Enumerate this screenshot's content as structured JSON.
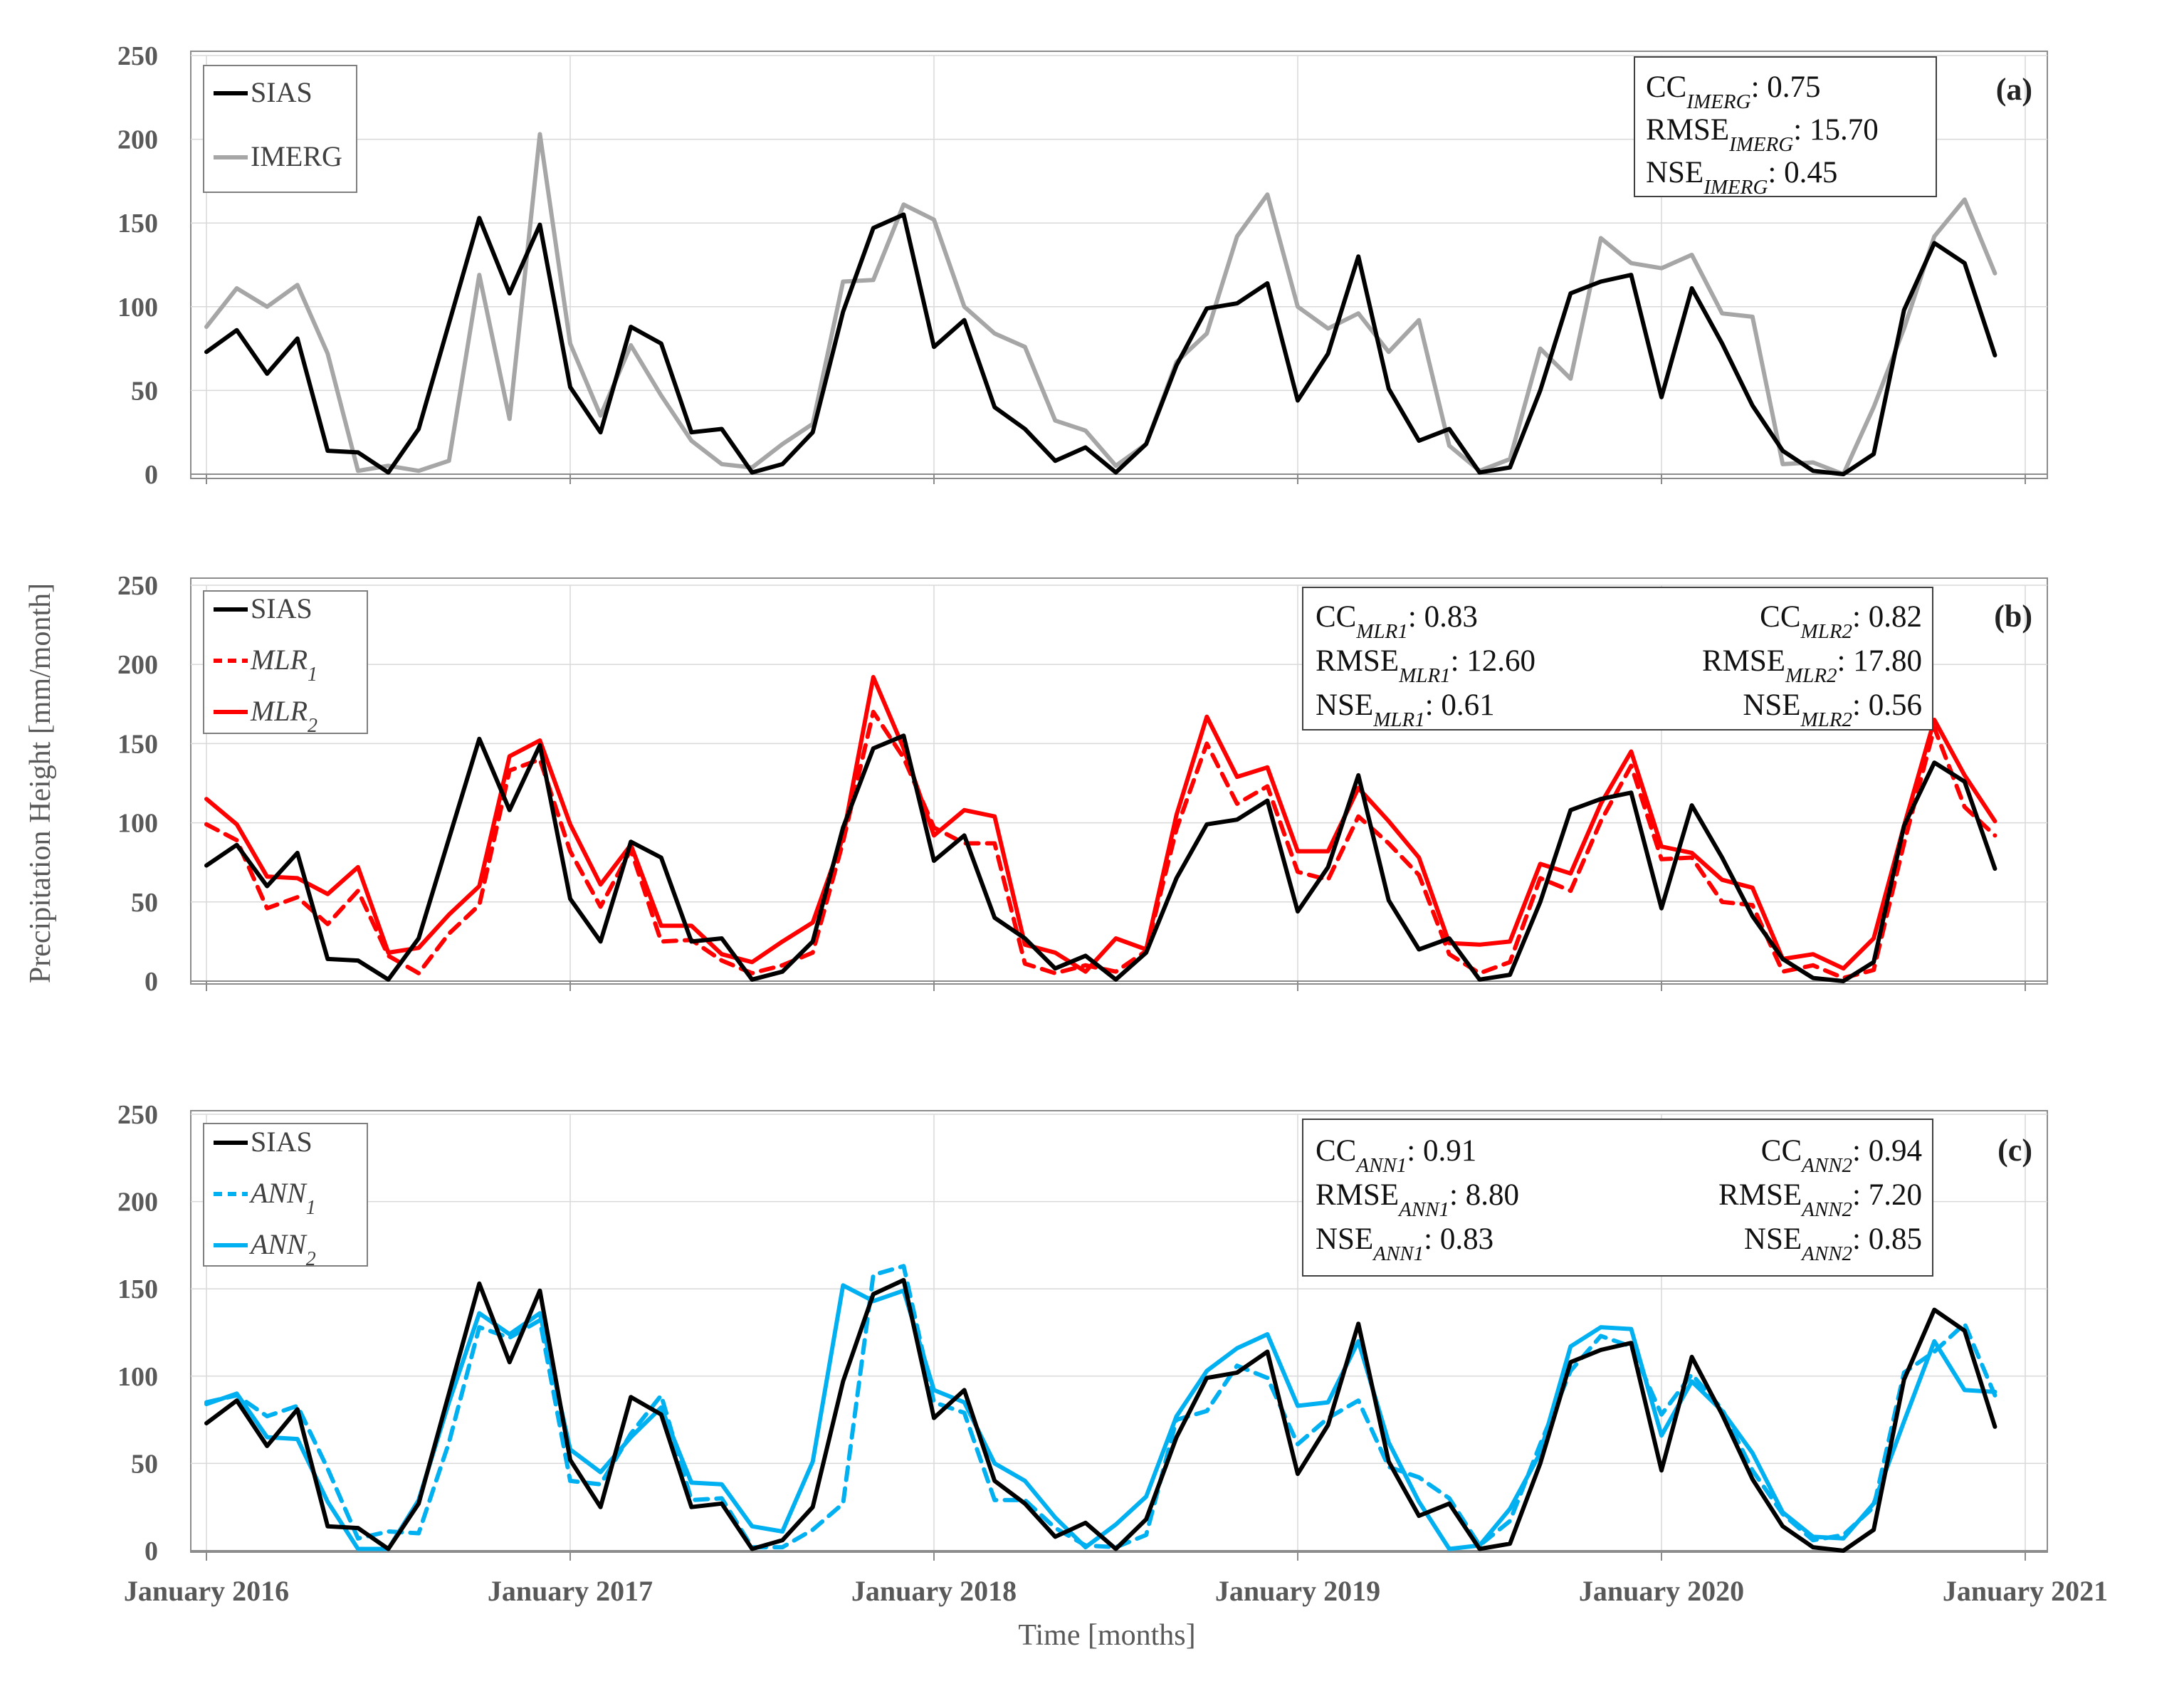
{
  "axis_titles": {
    "y": "Precipitation Height [mm/month]",
    "x": "Time [months]"
  },
  "chart_data": [
    {
      "type": "line",
      "panel": "(a)",
      "ylim": [
        0,
        250
      ],
      "yticks": [
        "0",
        "50",
        "100",
        "150",
        "200",
        "250"
      ],
      "x_labels": [
        "January 2016",
        "January 2017",
        "January 2018",
        "January 2019",
        "January 2020",
        "January 2021"
      ],
      "x_label_index": [
        0,
        12,
        24,
        36,
        48,
        60
      ],
      "series": [
        {
          "name": "SIAS",
          "color": "#000000",
          "dash": false,
          "values": [
            73,
            86,
            60,
            81,
            14,
            13,
            1,
            27,
            90,
            153,
            108,
            149,
            52,
            25,
            88,
            78,
            25,
            27,
            1,
            6,
            25,
            97,
            147,
            155,
            76,
            92,
            40,
            27,
            8,
            16,
            1,
            18,
            65,
            99,
            102,
            114,
            44,
            72,
            130,
            51,
            20,
            27,
            1,
            4,
            50,
            108,
            115,
            119,
            46,
            111,
            78,
            41,
            14,
            2,
            0,
            12,
            98,
            138,
            126,
            71
          ]
        },
        {
          "name": "IMERG",
          "color": "#a6a6a6",
          "dash": false,
          "values": [
            88,
            111,
            100,
            113,
            72,
            2,
            5,
            2,
            8,
            119,
            33,
            203,
            78,
            35,
            77,
            47,
            20,
            6,
            4,
            18,
            30,
            115,
            116,
            161,
            152,
            100,
            84,
            76,
            32,
            26,
            5,
            18,
            67,
            84,
            142,
            167,
            100,
            87,
            96,
            73,
            92,
            17,
            2,
            9,
            75,
            57,
            141,
            126,
            123,
            131,
            96,
            94,
            6,
            7,
            0,
            40,
            87,
            142,
            164,
            120
          ]
        }
      ],
      "legend": [
        {
          "key": "SIAS",
          "label": "SIAS",
          "subscript": "",
          "italic": false
        },
        {
          "key": "IMERG",
          "label": "IMERG",
          "subscript": "",
          "italic": false
        }
      ],
      "stats": {
        "left": [
          {
            "prefix": "CC",
            "subscript": "IMERG",
            "value": ": 0.75"
          },
          {
            "prefix": "RMSE",
            "subscript": "IMERG",
            "value": ": 15.70"
          },
          {
            "prefix": "NSE",
            "subscript": "IMERG",
            "value": ": 0.45"
          }
        ],
        "right": []
      }
    },
    {
      "type": "line",
      "panel": "(b)",
      "ylim": [
        0,
        250
      ],
      "yticks": [
        "0",
        "50",
        "100",
        "150",
        "200",
        "250"
      ],
      "x_labels": [],
      "x_label_index": [
        0,
        12,
        24,
        36,
        48,
        60
      ],
      "series": [
        {
          "name": "SIAS",
          "color": "#000000",
          "dash": false,
          "values": [
            73,
            86,
            60,
            81,
            14,
            13,
            1,
            27,
            90,
            153,
            108,
            149,
            52,
            25,
            88,
            78,
            25,
            27,
            1,
            6,
            25,
            97,
            147,
            155,
            76,
            92,
            40,
            27,
            8,
            16,
            1,
            18,
            65,
            99,
            102,
            114,
            44,
            72,
            130,
            51,
            20,
            27,
            1,
            4,
            50,
            108,
            115,
            119,
            46,
            111,
            78,
            41,
            14,
            2,
            0,
            12,
            98,
            138,
            126,
            71
          ]
        },
        {
          "name": "MLR1",
          "color": "#ff0000",
          "dash": true,
          "values": [
            99,
            89,
            46,
            53,
            36,
            57,
            16,
            5,
            30,
            48,
            133,
            140,
            82,
            47,
            83,
            25,
            26,
            13,
            5,
            10,
            18,
            88,
            170,
            141,
            97,
            87,
            87,
            11,
            5,
            10,
            6,
            19,
            96,
            150,
            112,
            123,
            69,
            64,
            104,
            87,
            67,
            17,
            5,
            12,
            65,
            57,
            101,
            136,
            77,
            78,
            50,
            48,
            6,
            10,
            2,
            7,
            87,
            160,
            110,
            92
          ]
        },
        {
          "name": "MLR2",
          "color": "#ff0000",
          "dash": false,
          "values": [
            115,
            99,
            66,
            65,
            55,
            72,
            18,
            21,
            42,
            60,
            142,
            152,
            99,
            61,
            86,
            35,
            35,
            17,
            12,
            25,
            37,
            91,
            192,
            147,
            92,
            108,
            104,
            23,
            18,
            6,
            27,
            20,
            105,
            167,
            129,
            135,
            82,
            82,
            122,
            101,
            78,
            24,
            23,
            25,
            74,
            68,
            112,
            145,
            85,
            81,
            64,
            59,
            14,
            17,
            8,
            27,
            98,
            165,
            130,
            101
          ]
        }
      ],
      "legend": [
        {
          "key": "SIAS",
          "label": "SIAS",
          "subscript": "",
          "italic": false
        },
        {
          "key": "MLR1",
          "label": "MLR",
          "subscript": "1",
          "italic": true
        },
        {
          "key": "MLR2",
          "label": "MLR",
          "subscript": "2",
          "italic": true
        }
      ],
      "stats": {
        "left": [
          {
            "prefix": "CC",
            "subscript": "MLR1",
            "value": ": 0.83"
          },
          {
            "prefix": "RMSE",
            "subscript": "MLR1",
            "value": ": 12.60"
          },
          {
            "prefix": "NSE",
            "subscript": "MLR1",
            "value": ": 0.61"
          }
        ],
        "right": [
          {
            "prefix": "CC",
            "subscript": "MLR2",
            "value": ": 0.82"
          },
          {
            "prefix": "RMSE",
            "subscript": "MLR2",
            "value": ": 17.80"
          },
          {
            "prefix": "NSE",
            "subscript": "MLR2",
            "value": ": 0.56"
          }
        ]
      }
    },
    {
      "type": "line",
      "panel": "(c)",
      "ylim": [
        0,
        250
      ],
      "yticks": [
        "0",
        "50",
        "100",
        "150",
        "200",
        "250"
      ],
      "x_labels": [
        "January 2016",
        "January 2017",
        "January 2018",
        "January 2019",
        "January 2020",
        "January 2021"
      ],
      "x_label_index": [
        0,
        12,
        24,
        36,
        48,
        60
      ],
      "series": [
        {
          "name": "SIAS",
          "color": "#000000",
          "dash": false,
          "values": [
            73,
            86,
            60,
            81,
            14,
            13,
            1,
            27,
            90,
            153,
            108,
            149,
            52,
            25,
            88,
            78,
            25,
            27,
            1,
            6,
            25,
            97,
            147,
            155,
            76,
            92,
            40,
            27,
            8,
            16,
            1,
            18,
            65,
            99,
            102,
            114,
            44,
            72,
            130,
            51,
            20,
            27,
            1,
            4,
            50,
            108,
            115,
            119,
            46,
            111,
            78,
            41,
            14,
            2,
            0,
            12,
            98,
            138,
            126,
            71
          ]
        },
        {
          "name": "ANN1",
          "color": "#00b0f0",
          "dash": true,
          "values": [
            85,
            89,
            77,
            83,
            47,
            7,
            11,
            10,
            62,
            128,
            122,
            132,
            40,
            38,
            67,
            89,
            29,
            30,
            2,
            2,
            12,
            27,
            158,
            163,
            85,
            79,
            29,
            29,
            13,
            3,
            2,
            9,
            75,
            80,
            106,
            99,
            61,
            76,
            86,
            48,
            42,
            30,
            3,
            17,
            61,
            103,
            123,
            117,
            78,
            101,
            81,
            46,
            21,
            6,
            9,
            25,
            102,
            114,
            130,
            89
          ]
        },
        {
          "name": "ANN2",
          "color": "#00b0f0",
          "dash": false,
          "values": [
            84,
            90,
            65,
            64,
            28,
            1,
            1,
            29,
            85,
            136,
            124,
            136,
            58,
            45,
            65,
            82,
            39,
            38,
            14,
            11,
            51,
            152,
            143,
            149,
            92,
            85,
            50,
            40,
            19,
            2,
            15,
            31,
            77,
            103,
            116,
            124,
            83,
            85,
            120,
            62,
            28,
            1,
            3,
            24,
            56,
            117,
            128,
            127,
            66,
            97,
            80,
            56,
            22,
            8,
            7,
            27,
            74,
            120,
            92,
            91
          ]
        }
      ],
      "legend": [
        {
          "key": "SIAS",
          "label": "SIAS",
          "subscript": "",
          "italic": false
        },
        {
          "key": "ANN1",
          "label": "ANN",
          "subscript": "1",
          "italic": true
        },
        {
          "key": "ANN2",
          "label": "ANN",
          "subscript": "2",
          "italic": true
        }
      ],
      "stats": {
        "left": [
          {
            "prefix": "CC",
            "subscript": "ANN1",
            "value": ": 0.91"
          },
          {
            "prefix": "RMSE",
            "subscript": "ANN1",
            "value": ": 8.80"
          },
          {
            "prefix": "NSE",
            "subscript": "ANN1",
            "value": ": 0.83"
          }
        ],
        "right": [
          {
            "prefix": "CC",
            "subscript": "ANN2",
            "value": ": 0.94"
          },
          {
            "prefix": "RMSE",
            "subscript": "ANN2",
            "value": ": 7.20"
          },
          {
            "prefix": "NSE",
            "subscript": "ANN2",
            "value": ": 0.85"
          }
        ]
      }
    }
  ]
}
